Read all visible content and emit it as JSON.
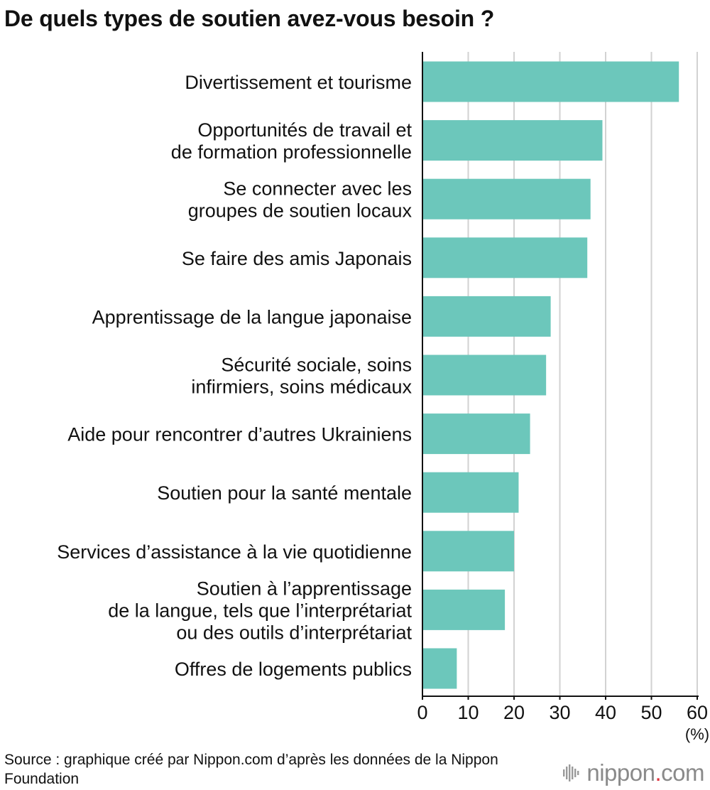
{
  "chart_data": {
    "type": "bar",
    "orientation": "horizontal",
    "title": "De quels types de soutien avez-vous besoin ?",
    "categories": [
      [
        "Divertissement et tourisme"
      ],
      [
        "Opportunités de travail et",
        "de formation professionnelle"
      ],
      [
        "Se connecter avec les",
        "groupes de soutien locaux"
      ],
      [
        "Se faire des amis Japonais"
      ],
      [
        "Apprentissage de la langue japonaise"
      ],
      [
        "Sécurité sociale, soins",
        "infirmiers, soins médicaux"
      ],
      [
        "Aide pour rencontrer d’autres Ukrainiens"
      ],
      [
        "Soutien pour la santé mentale"
      ],
      [
        "Services d’assistance à la vie quotidienne"
      ],
      [
        "Soutien à l’apprentissage",
        "de la langue, tels que l’interprétariat",
        "ou des outils d’interprétariat"
      ],
      [
        "Offres de logements publics"
      ]
    ],
    "values": [
      56,
      39.3,
      36.7,
      36,
      28,
      27,
      23.5,
      21,
      20,
      18,
      7.5
    ],
    "xlim": [
      0,
      60
    ],
    "xticks": [
      "0",
      "10",
      "20",
      "30",
      "40",
      "50",
      "60"
    ],
    "xticks_values": [
      0,
      10,
      20,
      30,
      40,
      50,
      60
    ],
    "xlabel": "(%)",
    "ylabel": "",
    "grid": true,
    "bar_color": "#6cc7bb",
    "grid_color": "#d2d2d2",
    "axis_color": "#111111"
  },
  "source": "Source : graphique créé par Nippon.com d’après les données de la Nippon Foundation",
  "logo": {
    "icon": "sound-wave-icon",
    "name_part": "nippon",
    "dot": ".",
    "suffix": "com",
    "dot_color": "#e0303a"
  }
}
